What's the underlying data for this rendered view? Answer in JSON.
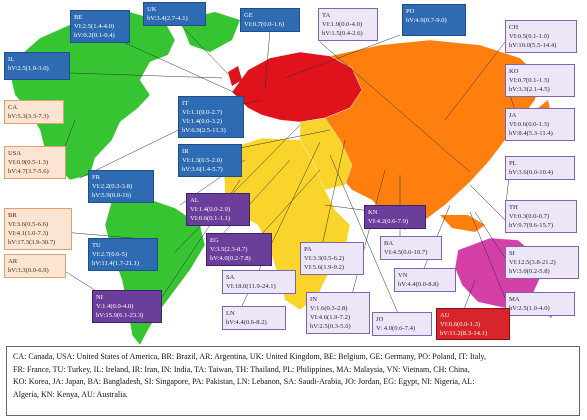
{
  "colors": {
    "north_america": "#36c432",
    "europe": "#e0121b",
    "asia": "#ff7f0e",
    "africa": "#fad42a",
    "oceania": "#d43fa8",
    "label_blue": "#2f6bb3",
    "label_orange": "#fbe5d2",
    "label_purple": "#6a3e9a",
    "label_lavender": "#ece6f6",
    "label_red": "#d8242b"
  },
  "labels": {
    "be": {
      "code": "BE",
      "vi": "VI:2.5(1.4-4.0)",
      "hv": "hV:0.2(0.1-0.4)"
    },
    "uk": {
      "code": "UK",
      "hv": "hV:3.4(2.7-4.1)"
    },
    "ge": {
      "code": "GE",
      "vi": "VI:0.7(0.0-1.6)"
    },
    "ta": {
      "code": "TA",
      "vi": "VI:1.9(0.0-4.0)",
      "hv": "hV:1.5(0.4-2.6)"
    },
    "po": {
      "code": "PO",
      "hv": "hV:4.9(0.7-9.0)"
    },
    "ch": {
      "code": "CH",
      "vi": "VI:0.5(0.1-1.0)",
      "hv": "hV:10.0(5.5-14.4)"
    },
    "il": {
      "code": "IL",
      "hv": "hV:2.5(1.9-3.0)"
    },
    "ko": {
      "code": "KO",
      "vi": "VI:0.7(0.1-1.3)",
      "hv": "hV:3.3(2.1-4.5)"
    },
    "ca": {
      "code": "CA",
      "hv": "hV:5.3(3.3-7.3)"
    },
    "it": {
      "code": "IT",
      "vi": "VI:1.1(0.0-2.7)",
      "vi2": "VI:1.4(0.0-3.2)",
      "hv": "hV:6.9(2.5-11.3)"
    },
    "ja": {
      "code": "JA",
      "vi": "VI:0.6(0.0-1.3)",
      "hv": "hV:8.4(5.3-11.4)"
    },
    "usa": {
      "code": "USA",
      "vi": "VI:0.9(0.5-1.3)",
      "hv": "hV:4.7(3.7-5.6)"
    },
    "pl": {
      "code": "PL",
      "hv": "hV:3.6(0.0-10.4)"
    },
    "ir": {
      "code": "IR",
      "vi": "VI:1.3(0.5-2.0)",
      "hv": "hV:3.6(1.4-5.7)"
    },
    "fr": {
      "code": "FR",
      "vi": "VI:2.2(0.3-3.8)",
      "hv": "hV:5.9(0.0-16)"
    },
    "th": {
      "code": "TH",
      "vi": "VI:0.3(0.0-0.7)",
      "hv": "hV:9.7(9.6-15.7)"
    },
    "br": {
      "code": "BR",
      "vi": "VI:3.6(0.5-6.6)",
      "vi2": "VI:4.1(1.0-7.3)",
      "hv": "hV:17.3(3.9-30.7)"
    },
    "al": {
      "code": "AL",
      "vi": "VI:1.4(0.0-2.9)",
      "hv": "VI:0.6(0.1-1.1)"
    },
    "kn": {
      "code": "KN",
      "vi": "VI:4.2(0.6-7.9)"
    },
    "si": {
      "code": "SI",
      "vi": "VI:12.5(3.8-21.2)",
      "hv": "hV:3.0(0.2-5.8)"
    },
    "tu": {
      "code": "TU",
      "vi": "VI:2.7(0.6-5)",
      "hv": "hV:11.4(1.7-21.1)"
    },
    "eg": {
      "code": "EG",
      "vi": "V:3.5(2.3-8.7)",
      "hv": "hV:4.0(0.2-7.8)"
    },
    "ba": {
      "code": "BA",
      "vi": "VI:4.5(0.0-10.7)"
    },
    "sa": {
      "code": "SA",
      "hv": "VI:18.0(11.9-24.1)"
    },
    "pa": {
      "code": "PA",
      "vi": "VI:3.3(0.5-6.2)",
      "hv": "VI:5.6(1.9-9.2)"
    },
    "vn": {
      "code": "VN",
      "hv": "hV:4.4(0.0-8.8)"
    },
    "ma": {
      "code": "MA",
      "hv": "hV:2.5(1.0-4.0)"
    },
    "ar": {
      "code": "AR",
      "hv": "hV:3.3(0.0-6.9)"
    },
    "ni": {
      "code": "NI",
      "vi": "V:1.4(0.0-4.0)",
      "hv": "hV:15.9(6.1-23.3)"
    },
    "ln": {
      "code": "LN",
      "hv": "hV:4.4(0.6-8.2)"
    },
    "in": {
      "code": "IN",
      "vi": "V:1.6(0.3-2.8)",
      "vi2": "VI:4.6(1.9-7.2)",
      "hv": "hV:2.5(0.3-5.0)"
    },
    "jo": {
      "code": "JO",
      "hv": "V: 4.0(0.6-7.4)"
    },
    "au": {
      "code": "AU",
      "vi": "VI:0.6(0.0-1.3)",
      "hv": "hV:11.2(8.3-14.1)"
    }
  },
  "legend": {
    "line1": "CA: Canada, USA: United States of America, BR: Brazil, AR: Argentina, UK: United Kingdom, BE: Belgium, GE: Germany, PO: Poland, IT: Italy,",
    "line2": "FR: France, TU: Turkey, IL: Ireland, IR: Iran, IN: India, TA: Taiwan, TH: Thailand, PL: Philippines, MA: Malaysia, VN: Vietnam, CH: China,",
    "line3": "KO: Korea, JA: Japan, BA: Bangladesh, SI: Singapore, PA: Pakistan, LN: Lebanon, SA: Saudi-Arabia, JO: Jordan, EG: Egypt, NI: Nigeria, AL:",
    "line4": "Algeria, KN: Kenya, AU: Australia."
  }
}
